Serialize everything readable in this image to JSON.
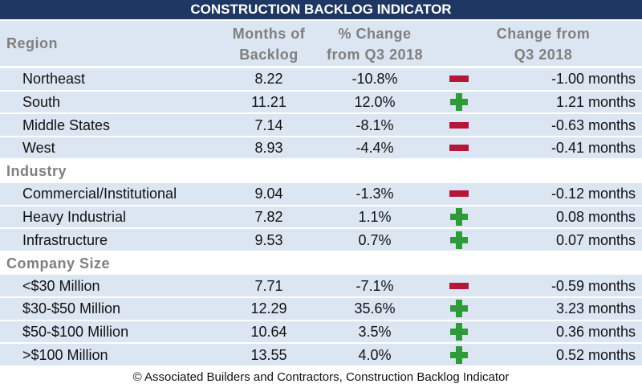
{
  "title": "CONSTRUCTION BACKLOG INDICATOR",
  "columns": {
    "months": [
      "Months of",
      "Backlog"
    ],
    "pct_change": [
      "% Change",
      "from Q3 2018"
    ],
    "change": [
      "Change from",
      "Q3 2018"
    ]
  },
  "sections": [
    {
      "title": "Region",
      "rows": [
        {
          "label": "Northeast",
          "months": "8.22",
          "pct_change": "-10.8%",
          "change": "-1.00 months"
        },
        {
          "label": "South",
          "months": "11.21",
          "pct_change": "12.0%",
          "change": "1.21 months"
        },
        {
          "label": "Middle States",
          "months": "7.14",
          "pct_change": "-8.1%",
          "change": "-0.63 months"
        },
        {
          "label": "West",
          "months": "8.93",
          "pct_change": "-4.4%",
          "change": "-0.41 months"
        }
      ]
    },
    {
      "title": "Industry",
      "rows": [
        {
          "label": "Commercial/Institutional",
          "months": "9.04",
          "pct_change": "-1.3%",
          "change": "-0.12 months"
        },
        {
          "label": "Heavy Industrial",
          "months": "7.82",
          "pct_change": "1.1%",
          "change": "0.08 months"
        },
        {
          "label": "Infrastructure",
          "months": "9.53",
          "pct_change": "0.7%",
          "change": "0.07 months"
        }
      ]
    },
    {
      "title": "Company Size",
      "rows": [
        {
          "label": "<$30 Million",
          "months": "7.71",
          "pct_change": "-7.1%",
          "change": "-0.59 months"
        },
        {
          "label": "$30-$50 Million",
          "months": "12.29",
          "pct_change": "35.6%",
          "change": "3.23 months"
        },
        {
          "label": "$50-$100 Million",
          "months": "10.64",
          "pct_change": "3.5%",
          "change": "0.36 months"
        },
        {
          "label": ">$100 Million",
          "months": "13.55",
          "pct_change": "4.0%",
          "change": "0.52 months"
        }
      ]
    }
  ],
  "footnote": "© Associated Builders and Contractors, Construction Backlog Indicator"
}
